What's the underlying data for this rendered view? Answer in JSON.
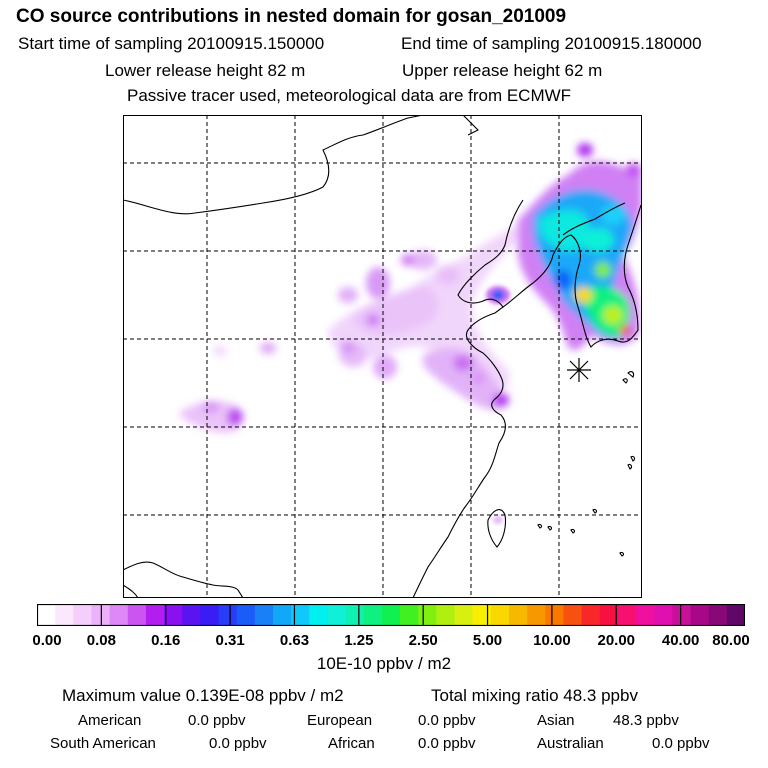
{
  "header": {
    "title": "CO  source contributions in nested domain for gosan_201009",
    "start_label": "Start time of sampling 20100915.150000",
    "end_label": "End time of sampling 20100915.180000",
    "lower_label": "Lower release height   82 m",
    "upper_label": "Upper release height   62 m",
    "tracer_note": "Passive tracer used, meteorological data are from ECMWF"
  },
  "colorbar": {
    "tick_labels": [
      "0.00",
      "0.08",
      "0.16",
      "0.31",
      "0.63",
      "1.25",
      "2.50",
      "5.00",
      "10.00",
      "20.00",
      "40.00",
      "80.00"
    ],
    "unit": "10E-10 ppbv / m2",
    "colors": [
      "#ffffff",
      "#fce8fd",
      "#f5cffb",
      "#ebb2f9",
      "#dd88f6",
      "#cc55f2",
      "#b21ef0",
      "#8a10f0",
      "#5a14f2",
      "#3a1cf5",
      "#2a3cf8",
      "#1a5cf8",
      "#1a80f8",
      "#10a8f8",
      "#10c8fa",
      "#00f0f0",
      "#10f0d8",
      "#10f0b0",
      "#10f080",
      "#10f050",
      "#40f020",
      "#80f010",
      "#b0f010",
      "#d8f010",
      "#f8f000",
      "#f8d800",
      "#f8b800",
      "#f89800",
      "#f87800",
      "#f85010",
      "#f82828",
      "#f81040",
      "#f81070",
      "#f010a0",
      "#e010b0",
      "#c81098",
      "#a80888",
      "#880878",
      "#600868"
    ]
  },
  "stats": {
    "max_label": "Maximum value  0.139E-08 ppbv / m2",
    "total_label": "Total mixing ratio       48.3 ppbv",
    "sources": [
      {
        "name": "American",
        "value": "0.0 ppbv"
      },
      {
        "name": "European",
        "value": "0.0 ppbv"
      },
      {
        "name": "Asian",
        "value": "48.3 ppbv"
      },
      {
        "name": "South American",
        "value": "0.0 ppbv"
      },
      {
        "name": "African",
        "value": "0.0 ppbv"
      },
      {
        "name": "Australian",
        "value": "0.0 ppbv"
      }
    ]
  },
  "map": {
    "receptor_marker": "asterisk-icon"
  }
}
